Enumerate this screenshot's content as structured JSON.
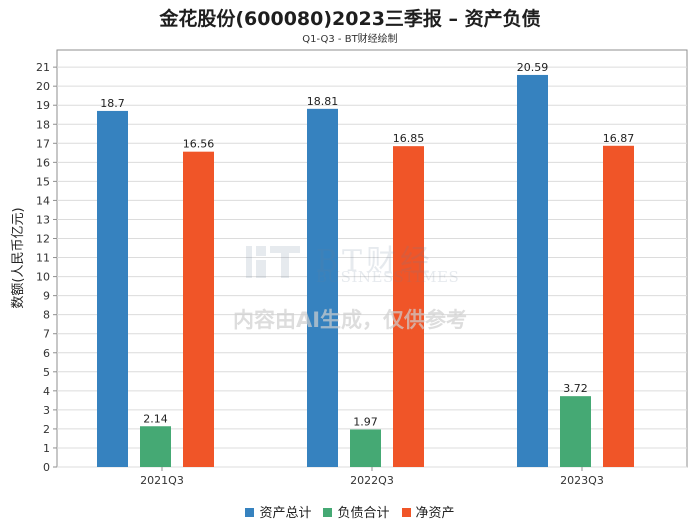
{
  "header": {
    "title": "金花股份(600080)2023三季报 – 资产负债",
    "subtitle": "Q1-Q3 - BT财经绘制"
  },
  "watermark": {
    "brand_cn": "BT财经",
    "brand_en": "BUSINESSTIMES",
    "ai_note": "内容由AI生成，仅供参考"
  },
  "chart_data": {
    "type": "bar",
    "categories": [
      "2021Q3",
      "2022Q3",
      "2023Q3"
    ],
    "series": [
      {
        "name": "资产总计",
        "values": [
          18.7,
          18.81,
          20.59
        ],
        "labels": [
          "18.7",
          "18.81",
          "20.59"
        ],
        "color": "#3682bf"
      },
      {
        "name": "负债合计",
        "values": [
          2.14,
          1.97,
          3.72
        ],
        "labels": [
          "2.14",
          "1.97",
          "3.72"
        ],
        "color": "#45a974"
      },
      {
        "name": "净资产",
        "values": [
          16.56,
          16.85,
          16.87
        ],
        "labels": [
          "16.56",
          "16.85",
          "16.87"
        ],
        "color": "#f05528"
      }
    ],
    "ylabel": "数额(人民币亿元)",
    "xlabel": "",
    "ylim": [
      0,
      21.9
    ],
    "yticks": [
      0,
      1,
      2,
      3,
      4,
      5,
      6,
      7,
      8,
      9,
      10,
      11,
      12,
      13,
      14,
      15,
      16,
      17,
      18,
      19,
      20,
      21
    ],
    "grid": true,
    "legend_position": "bottom-center"
  }
}
